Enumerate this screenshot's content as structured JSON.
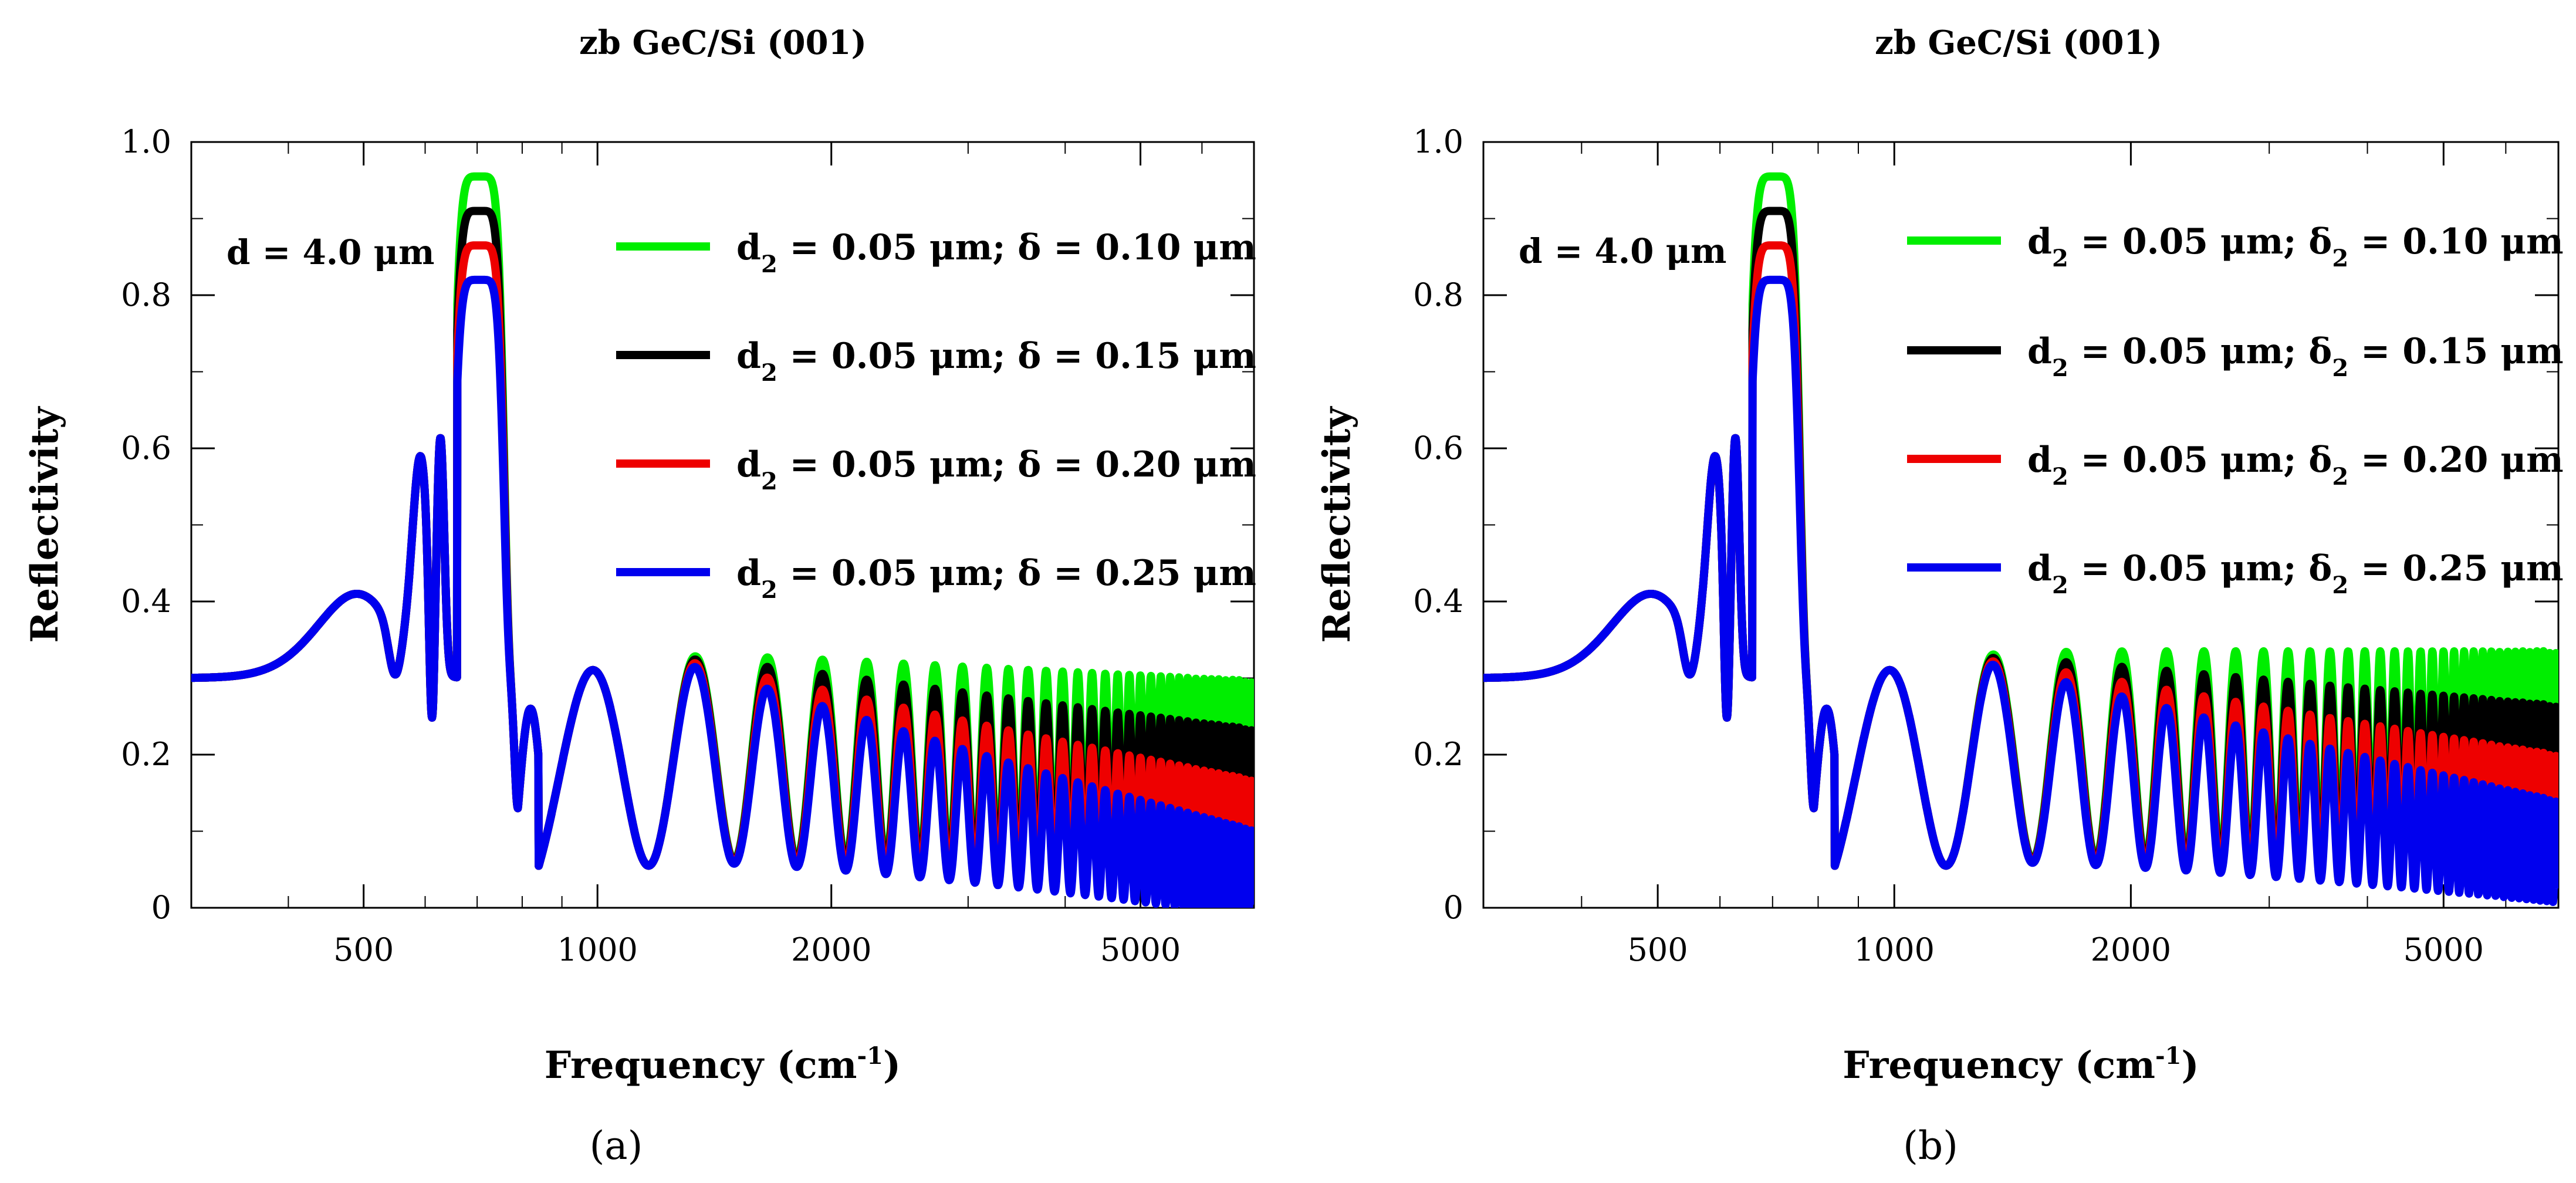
{
  "chart_data": [
    {
      "type": "line",
      "panel_label": "(a)",
      "title": "zb GeC/Si (001)",
      "xlabel": "Frequency (cm",
      "xlabel_sup": "-1",
      "xlabel_close": ")",
      "ylabel": "Reflectivity",
      "xscale": "log",
      "xlim": [
        300,
        7000
      ],
      "ylim": [
        0,
        1.0
      ],
      "x_ticks": [
        {
          "value": 500,
          "label": "500"
        },
        {
          "value": 1000,
          "label": "1000"
        },
        {
          "value": 2000,
          "label": "2000"
        },
        {
          "value": 5000,
          "label": "5000"
        }
      ],
      "y_ticks": [
        {
          "value": 0,
          "label": "0"
        },
        {
          "value": 0.2,
          "label": "0.2"
        },
        {
          "value": 0.4,
          "label": "0.4"
        },
        {
          "value": 0.6,
          "label": "0.6"
        },
        {
          "value": 0.8,
          "label": "0.8"
        },
        {
          "value": 1.0,
          "label": "1.0"
        }
      ],
      "annotation": "d = 4.0 μm",
      "legend_position": "upper-right",
      "series": [
        {
          "name": "d2 = 0.05 μm; δ = 0.10 μm",
          "legend_main": "d",
          "legend_sub": "2",
          "legend_rest": " = 0.05 μm; δ = 0.10 μm",
          "legend_delta_sub": "",
          "legend_tail": "",
          "color": "#00ee00",
          "amp_decay": 0.08
        },
        {
          "name": "d2 = 0.05 μm; δ = 0.15 μm",
          "legend_main": "d",
          "legend_sub": "2",
          "legend_rest": " = 0.05 μm; δ = 0.15 μm",
          "legend_delta_sub": "",
          "legend_tail": "",
          "color": "#000000",
          "amp_decay": 0.22
        },
        {
          "name": "d2 = 0.05 μm; δ = 0.20 μm",
          "legend_main": "d",
          "legend_sub": "2",
          "legend_rest": " = 0.05 μm; δ = 0.20 μm",
          "legend_delta_sub": "",
          "legend_tail": "",
          "color": "#ee0000",
          "amp_decay": 0.38
        },
        {
          "name": "d2 = 0.05 μm; δ = 0.25 μm",
          "legend_main": "d",
          "legend_sub": "2",
          "legend_rest": " = 0.05 μm; δ = 0.25 μm",
          "legend_delta_sub": "",
          "legend_tail": "",
          "color": "#0000ee",
          "amp_decay": 0.55
        }
      ]
    },
    {
      "type": "line",
      "panel_label": "(b)",
      "title": "zb GeC/Si (001)",
      "xlabel": "Frequency (cm",
      "xlabel_sup": "-1",
      "xlabel_close": ")",
      "ylabel": "Reflectivity",
      "xscale": "log",
      "xlim": [
        300,
        7000
      ],
      "ylim": [
        0,
        1.0
      ],
      "x_ticks": [
        {
          "value": 500,
          "label": "500"
        },
        {
          "value": 1000,
          "label": "1000"
        },
        {
          "value": 2000,
          "label": "2000"
        },
        {
          "value": 5000,
          "label": "5000"
        }
      ],
      "y_ticks": [
        {
          "value": 0,
          "label": "0"
        },
        {
          "value": 0.2,
          "label": "0.2"
        },
        {
          "value": 0.4,
          "label": "0.4"
        },
        {
          "value": 0.6,
          "label": "0.6"
        },
        {
          "value": 0.8,
          "label": "0.8"
        },
        {
          "value": 1.0,
          "label": "1.0"
        }
      ],
      "annotation": "d = 4.0 μm",
      "legend_position": "upper-right",
      "series": [
        {
          "name": "d2 = 0.05 μm; δ2 = 0.10 μm",
          "legend_main": "d",
          "legend_sub": "2",
          "legend_rest": " = 0.05 μm; δ",
          "legend_delta_sub": "2",
          "legend_tail": " = 0.10 μm",
          "color": "#00ee00",
          "amp_decay": 0.0
        },
        {
          "name": "d2 = 0.05 μm; δ2 = 0.15 μm",
          "legend_main": "d",
          "legend_sub": "2",
          "legend_rest": " = 0.05 μm; δ",
          "legend_delta_sub": "2",
          "legend_tail": " = 0.15 μm",
          "color": "#000000",
          "amp_decay": 0.15
        },
        {
          "name": "d2 = 0.05 μm; δ2 = 0.20 μm",
          "legend_main": "d",
          "legend_sub": "2",
          "legend_rest": " = 0.05 μm; δ",
          "legend_delta_sub": "2",
          "legend_tail": " = 0.20 μm",
          "color": "#ee0000",
          "amp_decay": 0.3
        },
        {
          "name": "d2 = 0.05 μm; δ2 = 0.25 μm",
          "legend_main": "d",
          "legend_sub": "2",
          "legend_rest": " = 0.05 μm; δ",
          "legend_delta_sub": "2",
          "legend_tail": " = 0.25 μm",
          "color": "#0000ee",
          "amp_decay": 0.45
        }
      ]
    }
  ]
}
